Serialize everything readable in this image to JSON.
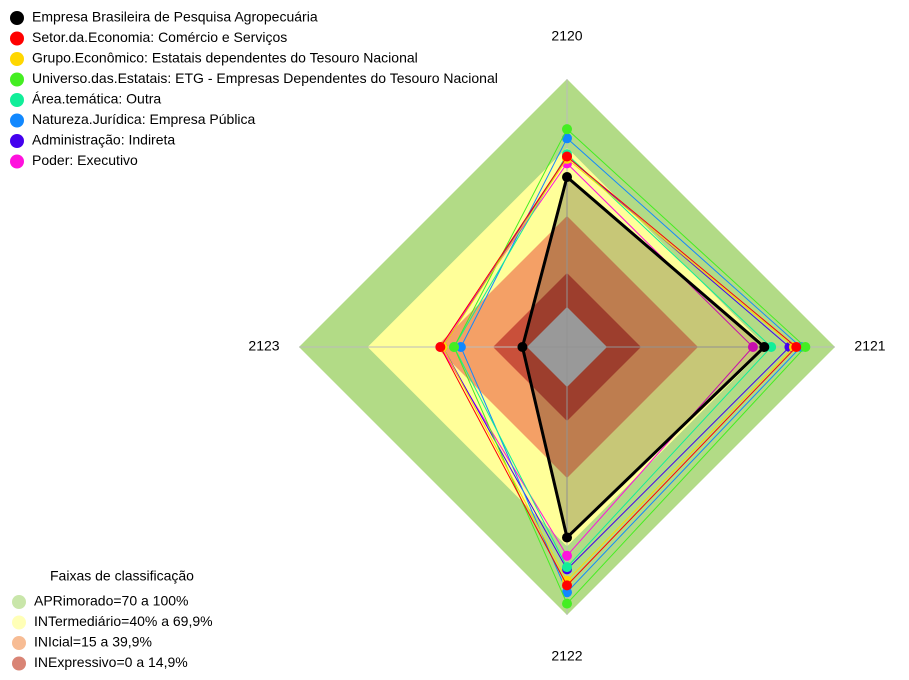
{
  "chart_data": {
    "type": "radar",
    "axes": [
      "2120",
      "2121",
      "2122",
      "2123"
    ],
    "rlim": [
      0,
      100
    ],
    "bands_title": "Faixas de classificação",
    "bands": [
      {
        "label": "APRimorado=70 a 100%",
        "value": 100,
        "color": "#b2db86"
      },
      {
        "label": "INTermediário=40% a 69,9%",
        "value": 69.9,
        "color": "#ffff99"
      },
      {
        "label": "INIcial=15 a 39,9%",
        "value": 39.9,
        "color": "#f4a066"
      },
      {
        "label": "INExpressivo=0 a 14,9%",
        "value": 14.9,
        "color": "#c9503a"
      }
    ],
    "series": [
      {
        "name": "Empresa Brasileira de Pesquisa Agropecuária",
        "color": "#000000",
        "values": [
          57,
          69,
          66,
          2
        ]
      },
      {
        "name": "Setor.da.Economia: Comércio e Serviços",
        "color": "#ff0000",
        "values": [
          66,
          83,
          87,
          38
        ]
      },
      {
        "name": "Grupo.Econômico: Estatais dependentes do Tesouro Nacional",
        "color": "#ffd700",
        "values": [
          65,
          82,
          85,
          37
        ]
      },
      {
        "name": "Universo.das.Estatais: ETG - Empresas Dependentes do Tesouro Nacional",
        "color": "#44ee22",
        "values": [
          78,
          87,
          95,
          32
        ]
      },
      {
        "name": "Área.temática: Outra",
        "color": "#11ee99",
        "values": [
          67,
          72,
          79,
          32
        ]
      },
      {
        "name": "Natureza.Jurídica: Empresa Pública",
        "color": "#1188ff",
        "values": [
          74,
          85,
          90,
          29
        ]
      },
      {
        "name": "Administração: Indireta",
        "color": "#4400ee",
        "values": [
          66,
          80,
          80,
          37
        ]
      },
      {
        "name": "Poder: Executivo",
        "color": "#ff11dd",
        "values": [
          63,
          64,
          74,
          38
        ]
      }
    ]
  }
}
